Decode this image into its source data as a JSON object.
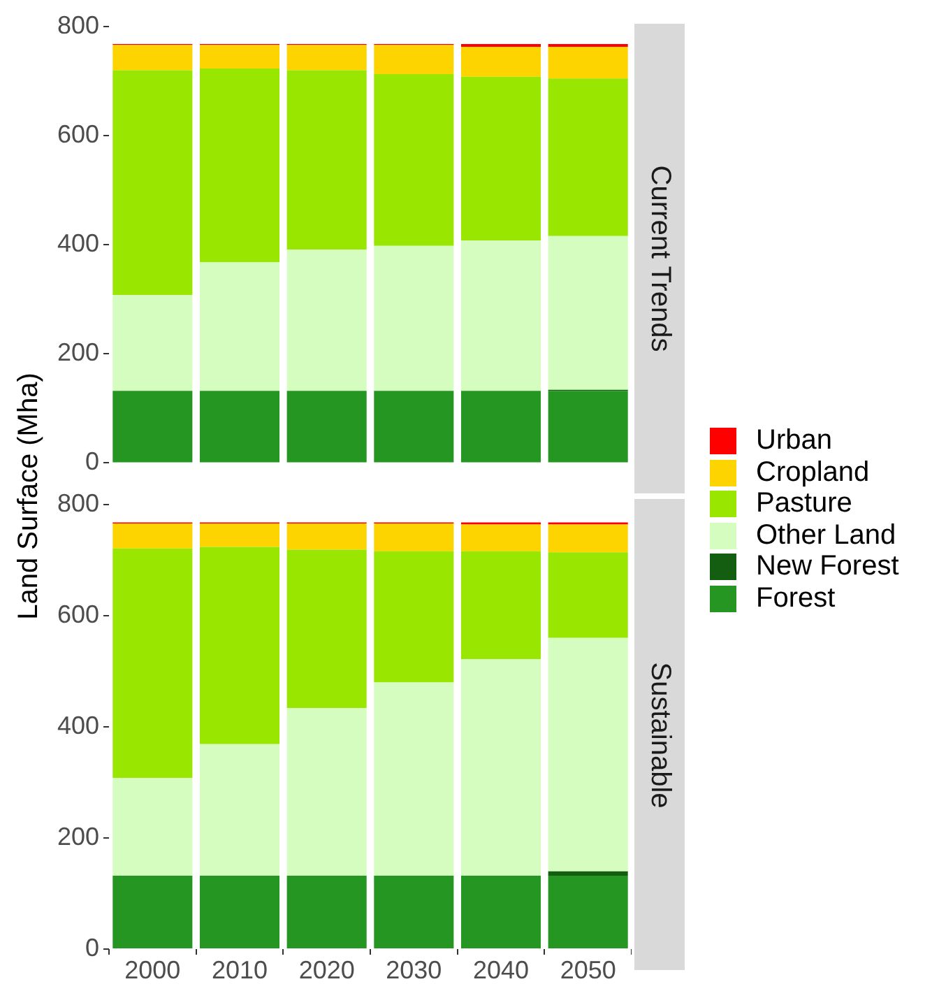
{
  "chart_data": [
    {
      "type": "bar",
      "title": "Current Trends",
      "ylabel": "Land Surface (Mha)",
      "stacked": true,
      "legend": "right",
      "tick_labels": "y",
      "categories": [
        "2000",
        "2010",
        "2020",
        "2030",
        "2040",
        "2050"
      ],
      "ylim": [
        0,
        800
      ],
      "yticks": [
        0,
        200,
        400,
        600,
        800
      ],
      "series": [
        {
          "name": "Forest",
          "color": "#259622",
          "values": [
            132,
            132,
            132,
            132,
            132,
            132
          ]
        },
        {
          "name": "New Forest",
          "color": "#135e10",
          "values": [
            0,
            0,
            0,
            0,
            0,
            2
          ]
        },
        {
          "name": "Other Land",
          "color": "#d4fdbf",
          "values": [
            176,
            236,
            259,
            266,
            276,
            282
          ]
        },
        {
          "name": "Pasture",
          "color": "#99e600",
          "values": [
            412,
            355,
            329,
            315,
            300,
            289
          ]
        },
        {
          "name": "Cropland",
          "color": "#fdd300",
          "values": [
            46,
            43,
            46,
            53,
            55,
            58
          ]
        },
        {
          "name": "Urban",
          "color": "#fe0000",
          "values": [
            2,
            2,
            2,
            2,
            5,
            5
          ]
        }
      ]
    },
    {
      "type": "bar",
      "title": "Sustainable",
      "stacked": true,
      "legend": "right",
      "categories": [
        "2000",
        "2010",
        "2020",
        "2030",
        "2040",
        "2050"
      ],
      "ylim": [
        0,
        800
      ],
      "yticks": [
        0,
        200,
        400,
        600,
        800
      ],
      "series": [
        {
          "name": "Forest",
          "color": "#259622",
          "values": [
            132,
            132,
            132,
            132,
            132,
            132
          ]
        },
        {
          "name": "New Forest",
          "color": "#135e10",
          "values": [
            0,
            0,
            0,
            0,
            0,
            8
          ]
        },
        {
          "name": "Other Land",
          "color": "#d4fdbf",
          "values": [
            176,
            237,
            302,
            348,
            390,
            420
          ]
        },
        {
          "name": "Pasture",
          "color": "#99e600",
          "values": [
            413,
            355,
            285,
            236,
            194,
            154
          ]
        },
        {
          "name": "Cropland",
          "color": "#fdd300",
          "values": [
            45,
            42,
            47,
            50,
            48,
            50
          ]
        },
        {
          "name": "Urban",
          "color": "#fe0000",
          "values": [
            2,
            2,
            2,
            2,
            4,
            4
          ]
        }
      ]
    }
  ]
}
